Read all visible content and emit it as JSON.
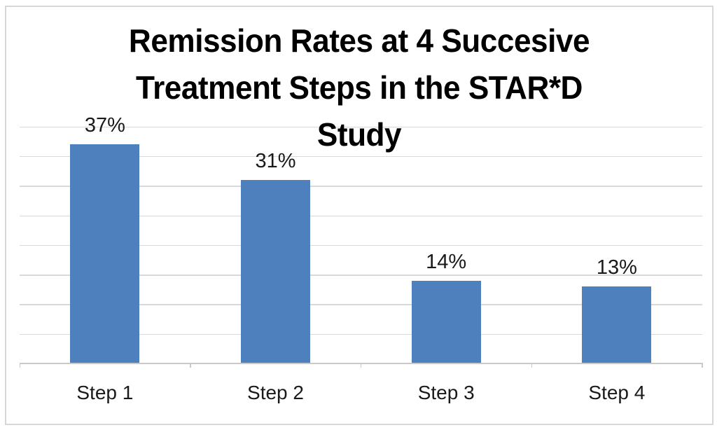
{
  "chart_data": {
    "type": "bar",
    "title": "Remission Rates at 4 Succesive Treatment Steps in the STAR*D Study",
    "title_lines": [
      "Remission Rates at 4 Succesive",
      "Treatment Steps in the STAR*D",
      "Study"
    ],
    "categories": [
      "Step 1",
      "Step 2",
      "Step 3",
      "Step 4"
    ],
    "values": [
      37,
      31,
      14,
      13
    ],
    "data_labels": [
      "37%",
      "31%",
      "14%",
      "13%"
    ],
    "unit": "%",
    "xlabel": "",
    "ylabel": "",
    "ylim": [
      0,
      40
    ],
    "gridline_interval": 5,
    "grid": true,
    "y_axis_labels_visible": false,
    "legend_position": "none",
    "data_label_position": "outside-end",
    "bar_color": "#4e80bd",
    "gridline_color": "#d9d9d9",
    "axis_line_color": "#c9c9c9",
    "label_text_color": "#1a1a1a",
    "title_color": "#000000",
    "frame_border_color": "#d7d7d7",
    "background_color": "#ffffff"
  }
}
